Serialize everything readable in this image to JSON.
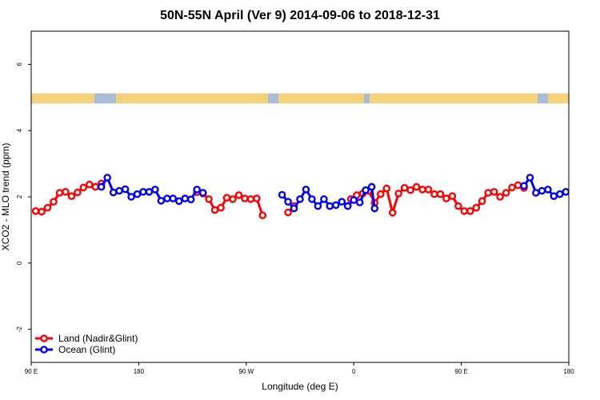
{
  "chart_data": {
    "type": "line",
    "title": "50N-55N April (Ver 9)   2014-09-06 to 2018-12-31",
    "xlabel": "Longitude (deg E)",
    "ylabel": "XCO2 - MLO trend (ppm)",
    "xlim": [
      90,
      450
    ],
    "ylim": [
      -3,
      7
    ],
    "x_ticks": [
      {
        "value": 90,
        "label": "90 E"
      },
      {
        "value": 162,
        "label": "180"
      },
      {
        "value": 234,
        "label": "90 W"
      },
      {
        "value": 306,
        "label": "0"
      },
      {
        "value": 378,
        "label": "90 E"
      },
      {
        "value": 450,
        "label": "180"
      }
    ],
    "y_ticks": [
      -2,
      0,
      2,
      4,
      6
    ],
    "grid": false,
    "legend_position": "bottom-left",
    "land_ocean_strip": {
      "y_range": [
        4.82,
        5.12
      ],
      "land_color": "#f5d27a",
      "ocean_color": "#a8bcd8"
    },
    "series": [
      {
        "name": "Land (Nadir&Glint)",
        "color": "#ff0000",
        "segments": [
          [
            [
              93,
              1.57
            ],
            [
              97,
              1.55
            ],
            [
              101,
              1.67
            ],
            [
              105,
              1.85
            ],
            [
              109,
              2.12
            ],
            [
              113,
              2.15
            ],
            [
              117,
              2.02
            ],
            [
              121,
              2.13
            ],
            [
              125,
              2.28
            ],
            [
              129,
              2.37
            ],
            [
              133,
              2.3
            ],
            [
              137,
              2.4
            ]
          ],
          [
            [
              201,
              2.14
            ],
            [
              205,
              2.1
            ],
            [
              209,
              1.93
            ],
            [
              213,
              1.6
            ],
            [
              217,
              1.67
            ],
            [
              221,
              1.97
            ],
            [
              225,
              1.93
            ],
            [
              229,
              2.05
            ],
            [
              233,
              1.95
            ],
            [
              237,
              1.93
            ],
            [
              241,
              1.95
            ],
            [
              245,
              1.44
            ]
          ],
          [
            [
              262,
              1.53
            ],
            [
              266,
              1.72
            ]
          ],
          [
            [
              304,
              1.93
            ],
            [
              308,
              2.05
            ],
            [
              312,
              2.1
            ],
            [
              316,
              2.18
            ],
            [
              320,
              1.82
            ],
            [
              324,
              2.08
            ],
            [
              328,
              2.25
            ],
            [
              332,
              1.52
            ],
            [
              336,
              2.1
            ],
            [
              340,
              2.27
            ],
            [
              344,
              2.2
            ],
            [
              348,
              2.3
            ],
            [
              352,
              2.22
            ],
            [
              356,
              2.22
            ],
            [
              360,
              2.08
            ],
            [
              364,
              2.08
            ],
            [
              368,
              1.95
            ],
            [
              372,
              2.02
            ],
            [
              376,
              1.72
            ],
            [
              380,
              1.57
            ],
            [
              384,
              1.57
            ],
            [
              388,
              1.67
            ],
            [
              392,
              1.87
            ],
            [
              396,
              2.12
            ],
            [
              400,
              2.15
            ],
            [
              404,
              2.0
            ],
            [
              408,
              2.12
            ],
            [
              412,
              2.28
            ],
            [
              416,
              2.35
            ],
            [
              420,
              2.27
            ]
          ]
        ]
      },
      {
        "name": "Ocean (Glint)",
        "color": "#0000ff",
        "segments": [
          [
            [
              137,
              2.3
            ],
            [
              141,
              2.58
            ],
            [
              145,
              2.13
            ],
            [
              149,
              2.18
            ],
            [
              153,
              2.23
            ],
            [
              157,
              2.0
            ],
            [
              161,
              2.08
            ],
            [
              165,
              2.15
            ],
            [
              169,
              2.15
            ],
            [
              173,
              2.22
            ],
            [
              177,
              1.88
            ],
            [
              181,
              1.95
            ],
            [
              185,
              1.95
            ],
            [
              189,
              1.87
            ],
            [
              193,
              1.95
            ],
            [
              197,
              1.92
            ],
            [
              201,
              2.22
            ],
            [
              205,
              2.12
            ]
          ],
          [
            [
              258,
              2.06
            ],
            [
              262,
              1.85
            ],
            [
              266,
              1.65
            ],
            [
              270,
              1.93
            ],
            [
              274,
              2.22
            ],
            [
              278,
              1.93
            ],
            [
              282,
              1.72
            ],
            [
              286,
              1.93
            ],
            [
              290,
              1.72
            ],
            [
              294,
              1.75
            ],
            [
              298,
              1.85
            ],
            [
              302,
              1.72
            ],
            [
              306,
              1.9
            ],
            [
              310,
              1.83
            ],
            [
              314,
              2.2
            ],
            [
              318,
              2.3
            ],
            [
              320,
              1.65
            ]
          ],
          [
            [
              420,
              2.33
            ],
            [
              424,
              2.58
            ],
            [
              428,
              2.12
            ],
            [
              432,
              2.18
            ],
            [
              436,
              2.22
            ],
            [
              440,
              2.02
            ],
            [
              444,
              2.08
            ],
            [
              448,
              2.15
            ]
          ]
        ]
      }
    ]
  }
}
